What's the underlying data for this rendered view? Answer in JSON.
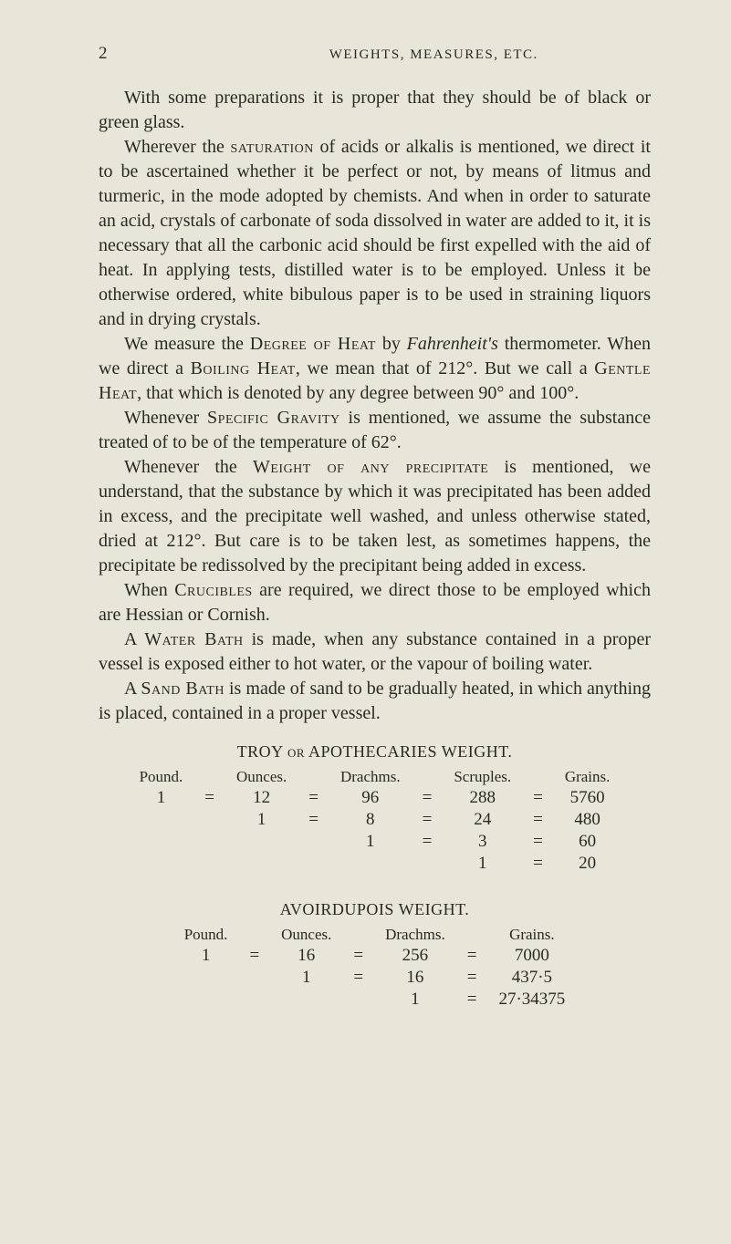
{
  "colors": {
    "background": "#e8e6d8",
    "text": "#2a2a24"
  },
  "typography": {
    "body_fontsize_pt": 20,
    "header_fontsize_pt": 15,
    "line_height": 1.35,
    "font_family": "Georgia serif"
  },
  "header": {
    "page_number": "2",
    "running_head": "WEIGHTS, MEASURES, ETC."
  },
  "paragraphs": {
    "p1_a": "With some preparations it is proper that they should be of black or green glass.",
    "p2_a": "Wherever the ",
    "p2_sc1": "saturation",
    "p2_b": " of acids or alkalis is mentioned, we direct it to be ascertained whether it be perfect or not, by means of litmus and turmeric, in the mode adopted by chemists. And when in order to saturate an acid, crystals of carbonate of soda dissolved in water are added to it, it is necessary that all the carbonic acid should be first expelled with the aid of heat. In applying tests, distilled water is to be employed. Unless it be otherwise ordered, white bibulous paper is to be used in straining liquors and in drying crystals.",
    "p3_a": "We measure the ",
    "p3_sc1": "Degree of Heat",
    "p3_b": " by ",
    "p3_it1": "Fahrenheit's",
    "p3_c": " thermometer. When we direct a ",
    "p3_sc2": "Boiling Heat",
    "p3_d": ", we mean that of 212°. But we call a ",
    "p3_sc3": "Gentle Heat",
    "p3_e": ", that which is denoted by any degree between 90° and 100°.",
    "p4_a": "Whenever ",
    "p4_sc1": "Specific Gravity",
    "p4_b": " is mentioned, we assume the substance treated of to be of the temperature of 62°.",
    "p5_a": "Whenever the ",
    "p5_sc1": "Weight of any precipitate",
    "p5_b": " is mentioned, we understand, that the substance by which it was precipitated has been added in excess, and the precipitate well washed, and unless otherwise stated, dried at 212°. But care is to be taken lest, as sometimes happens, the precipitate be redissolved by the precipitant being added in excess.",
    "p6_a": "When ",
    "p6_sc1": "Crucibles",
    "p6_b": " are required, we direct those to be employed which are Hessian or Cornish.",
    "p7_a": "A ",
    "p7_sc1": "Water Bath",
    "p7_b": " is made, when any substance contained in a proper vessel is exposed either to hot water, or the vapour of boiling water.",
    "p8_a": "A ",
    "p8_sc1": "Sand Bath",
    "p8_b": " is made of sand to be gradually heated, in which anything is placed, contained in a proper vessel."
  },
  "troy_table": {
    "title": "TROY or APOTHECARIES WEIGHT.",
    "or_word": "or",
    "headers": {
      "pound": "Pound.",
      "ounces": "Ounces.",
      "drachms": "Drachms.",
      "scruples": "Scruples.",
      "grains": "Grains."
    },
    "eq": "=",
    "rows": [
      {
        "pound": "1",
        "ounces": "12",
        "drachms": "96",
        "scruples": "288",
        "grains": "5760"
      },
      {
        "pound": "",
        "ounces": "1",
        "drachms": "8",
        "scruples": "24",
        "grains": "480"
      },
      {
        "pound": "",
        "ounces": "",
        "drachms": "1",
        "scruples": "3",
        "grains": "60"
      },
      {
        "pound": "",
        "ounces": "",
        "drachms": "",
        "scruples": "1",
        "grains": "20"
      }
    ]
  },
  "avoir_table": {
    "title": "AVOIRDUPOIS WEIGHT.",
    "headers": {
      "pound": "Pound.",
      "ounces": "Ounces.",
      "drachms": "Drachms.",
      "grains": "Grains."
    },
    "eq": "=",
    "rows": [
      {
        "pound": "1",
        "ounces": "16",
        "drachms": "256",
        "grains": "7000"
      },
      {
        "pound": "",
        "ounces": "1",
        "drachms": "16",
        "grains": "437·5"
      },
      {
        "pound": "",
        "ounces": "",
        "drachms": "1",
        "grains": "27·34375"
      }
    ]
  }
}
